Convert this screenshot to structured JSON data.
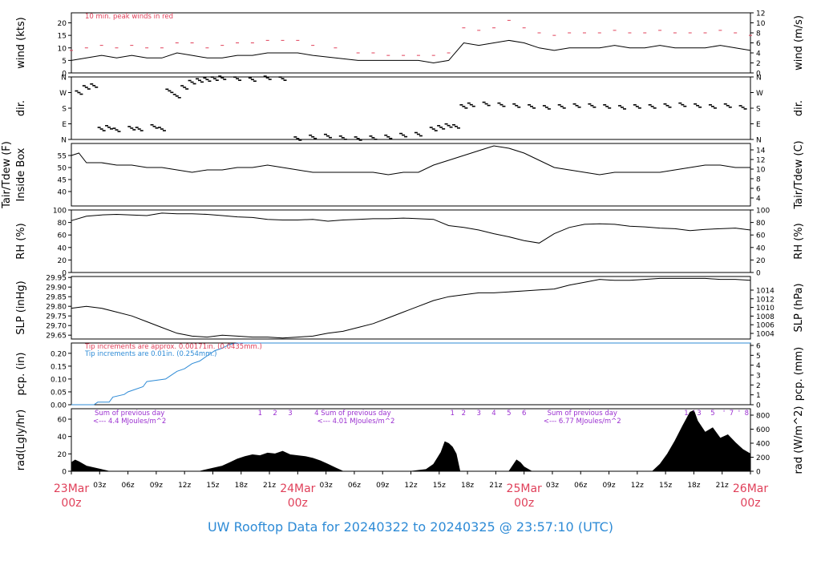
{
  "title": "UW Rooftop Data for 20240322  to  20240325 @ 23:57:10  (UTC)",
  "colors": {
    "day": "#e0405a",
    "tip": "#2e8bd6",
    "note": "#9b30d0",
    "series": "#000000",
    "peak": "#e0405a"
  },
  "chart_data": [
    {
      "type": "line",
      "panel": "wind",
      "ylabel": "wind (kts)",
      "ylabel_right": "wind (m/s)",
      "ylim": [
        0,
        24
      ],
      "yticks": [
        0,
        5,
        10,
        15,
        20
      ],
      "yticks_right": [
        0,
        2,
        4,
        6,
        8,
        10,
        12
      ],
      "annotation": "10 min. peak winds in red",
      "series": [
        {
          "color": "#000000",
          "x": [
            0,
            2,
            4,
            6,
            8,
            10,
            12,
            14,
            16,
            18,
            20,
            22,
            24,
            26,
            28,
            30,
            32,
            35,
            38,
            40,
            42,
            44,
            46,
            48,
            50,
            52,
            54,
            56,
            58,
            60,
            62,
            64,
            66,
            68,
            70,
            72,
            74,
            76,
            78,
            80,
            82,
            84,
            86,
            88,
            90
          ],
          "y": [
            5,
            6,
            7,
            6,
            7,
            6,
            6,
            8,
            7,
            6,
            6,
            7,
            7,
            8,
            8,
            8,
            7,
            6,
            5,
            5,
            5,
            5,
            5,
            4,
            5,
            12,
            11,
            12,
            13,
            12,
            10,
            9,
            10,
            10,
            10,
            11,
            10,
            10,
            11,
            10,
            10,
            10,
            11,
            10,
            9
          ]
        },
        {
          "color": "#e0405a",
          "x": [
            0,
            2,
            4,
            6,
            8,
            10,
            12,
            14,
            16,
            18,
            20,
            22,
            24,
            26,
            28,
            30,
            32,
            35,
            38,
            40,
            42,
            44,
            46,
            48,
            50,
            52,
            54,
            56,
            58,
            60,
            62,
            64,
            66,
            68,
            70,
            72,
            74,
            76,
            78,
            80,
            82,
            84,
            86,
            88,
            90
          ],
          "y": [
            9,
            10,
            11,
            10,
            11,
            10,
            10,
            12,
            12,
            10,
            11,
            12,
            12,
            13,
            13,
            13,
            11,
            10,
            8,
            8,
            7,
            7,
            7,
            7,
            8,
            18,
            17,
            18,
            21,
            18,
            16,
            15,
            16,
            16,
            16,
            17,
            16,
            16,
            17,
            16,
            16,
            16,
            17,
            16,
            15
          ]
        }
      ]
    },
    {
      "type": "scatter",
      "panel": "dir",
      "ylabel": "dir.",
      "ylabel_right": "dir.",
      "yticks": [
        "N",
        "E",
        "S",
        "W",
        "N"
      ],
      "yrange_deg": [
        0,
        360
      ],
      "points": [
        [
          1,
          270
        ],
        [
          2,
          300
        ],
        [
          3,
          310
        ],
        [
          4,
          60
        ],
        [
          5,
          70
        ],
        [
          6,
          55
        ],
        [
          8,
          65
        ],
        [
          9,
          60
        ],
        [
          11,
          75
        ],
        [
          12,
          60
        ],
        [
          13,
          280
        ],
        [
          14,
          250
        ],
        [
          15,
          300
        ],
        [
          16,
          330
        ],
        [
          17,
          340
        ],
        [
          18,
          345
        ],
        [
          19,
          350
        ],
        [
          20,
          355
        ],
        [
          22,
          350
        ],
        [
          24,
          345
        ],
        [
          26,
          355
        ],
        [
          28,
          350
        ],
        [
          30,
          5
        ],
        [
          32,
          15
        ],
        [
          34,
          20
        ],
        [
          36,
          10
        ],
        [
          38,
          5
        ],
        [
          40,
          10
        ],
        [
          42,
          15
        ],
        [
          44,
          25
        ],
        [
          46,
          30
        ],
        [
          48,
          60
        ],
        [
          49,
          70
        ],
        [
          50,
          80
        ],
        [
          51,
          75
        ],
        [
          52,
          190
        ],
        [
          53,
          200
        ],
        [
          55,
          205
        ],
        [
          57,
          200
        ],
        [
          59,
          195
        ],
        [
          61,
          190
        ],
        [
          63,
          185
        ],
        [
          65,
          190
        ],
        [
          67,
          195
        ],
        [
          69,
          195
        ],
        [
          71,
          190
        ],
        [
          73,
          185
        ],
        [
          75,
          190
        ],
        [
          77,
          190
        ],
        [
          79,
          195
        ],
        [
          81,
          200
        ],
        [
          83,
          195
        ],
        [
          85,
          190
        ],
        [
          87,
          195
        ],
        [
          89,
          185
        ]
      ]
    },
    {
      "type": "line",
      "panel": "temp",
      "ylabel": "Tair/Tdew (F)",
      "ylabel_sub": "Inside Box",
      "ylabel_right": "Tair/Tdew (C)",
      "ylim": [
        34,
        60
      ],
      "yticks": [
        40,
        45,
        50,
        55
      ],
      "yticks_right": [
        4,
        6,
        8,
        10,
        12,
        14
      ],
      "x": [
        0,
        1,
        2,
        4,
        6,
        8,
        10,
        12,
        14,
        16,
        18,
        20,
        22,
        24,
        26,
        28,
        30,
        32,
        34,
        36,
        38,
        40,
        42,
        44,
        46,
        48,
        50,
        52,
        54,
        56,
        58,
        60,
        62,
        64,
        66,
        68,
        70,
        72,
        74,
        76,
        78,
        80,
        82,
        84,
        86,
        88,
        90
      ],
      "y": [
        55,
        56,
        52,
        52,
        51,
        51,
        50,
        50,
        49,
        48,
        49,
        49,
        50,
        50,
        51,
        50,
        49,
        48,
        48,
        48,
        48,
        48,
        47,
        48,
        48,
        51,
        53,
        55,
        57,
        59,
        58,
        56,
        53,
        50,
        49,
        48,
        47,
        48,
        48,
        48,
        48,
        49,
        50,
        51,
        51,
        50,
        50
      ]
    },
    {
      "type": "line",
      "panel": "rh",
      "ylabel": "RH (%)",
      "ylabel_right": "RH (%)",
      "ylim": [
        0,
        100
      ],
      "yticks": [
        0,
        20,
        40,
        60,
        80,
        100
      ],
      "yticks_right": [
        0,
        20,
        40,
        60,
        80,
        100
      ],
      "x": [
        0,
        2,
        4,
        6,
        8,
        10,
        12,
        14,
        16,
        18,
        20,
        22,
        24,
        26,
        28,
        30,
        32,
        34,
        36,
        38,
        40,
        42,
        44,
        46,
        48,
        50,
        52,
        54,
        56,
        58,
        60,
        62,
        64,
        66,
        68,
        70,
        72,
        74,
        76,
        78,
        80,
        82,
        84,
        86,
        88,
        90
      ],
      "y": [
        83,
        90,
        92,
        93,
        92,
        91,
        95,
        94,
        94,
        93,
        91,
        89,
        88,
        85,
        84,
        84,
        85,
        82,
        84,
        85,
        86,
        86,
        87,
        86,
        85,
        75,
        72,
        68,
        62,
        57,
        51,
        47,
        62,
        72,
        77,
        78,
        77,
        74,
        73,
        71,
        70,
        67,
        69,
        70,
        71,
        68
      ]
    },
    {
      "type": "line",
      "panel": "slp",
      "ylabel": "SLP (inHg)",
      "ylabel_right": "SLP (hPa)",
      "ylim": [
        29.63,
        29.955
      ],
      "yticks": [
        29.65,
        29.7,
        29.75,
        29.8,
        29.85,
        29.9,
        29.95
      ],
      "yticks_right": [
        1004,
        1006,
        1008,
        1010,
        1012,
        1014
      ],
      "x": [
        0,
        2,
        4,
        6,
        8,
        10,
        12,
        14,
        16,
        18,
        20,
        22,
        24,
        26,
        28,
        30,
        32,
        34,
        36,
        38,
        40,
        42,
        44,
        46,
        48,
        50,
        52,
        54,
        56,
        58,
        60,
        62,
        64,
        66,
        68,
        70,
        72,
        74,
        76,
        78,
        80,
        82,
        84,
        86,
        88,
        90
      ],
      "y": [
        29.79,
        29.8,
        29.79,
        29.77,
        29.75,
        29.72,
        29.69,
        29.66,
        29.645,
        29.64,
        29.65,
        29.645,
        29.64,
        29.64,
        29.635,
        29.64,
        29.645,
        29.66,
        29.67,
        29.69,
        29.71,
        29.74,
        29.77,
        29.8,
        29.83,
        29.85,
        29.86,
        29.87,
        29.87,
        29.875,
        29.88,
        29.885,
        29.89,
        29.91,
        29.925,
        29.94,
        29.935,
        29.935,
        29.94,
        29.945,
        29.945,
        29.945,
        29.945,
        29.94,
        29.94,
        29.935
      ]
    },
    {
      "type": "line",
      "panel": "pcp",
      "ylabel": "pcp. (in)",
      "ylabel_right": "pcp. (mm)",
      "ylim": [
        0,
        0.24
      ],
      "yticks": [
        0.0,
        0.05,
        0.1,
        0.15,
        0.2
      ],
      "yticks_right": [
        0,
        1,
        2,
        3,
        4,
        5,
        6
      ],
      "notes": [
        "Tip increments are approx. 0.00171in. (0.0435mm.)",
        "Tip increments are 0.01in. (0.254mm.)"
      ],
      "series": [
        {
          "color": "#2e8bd6",
          "x": [
            0,
            3,
            3.5,
            5,
            5.5,
            7,
            7.5,
            9.5,
            10,
            12.5,
            13,
            14,
            15,
            16,
            17,
            18,
            19,
            20,
            21,
            22,
            22.5,
            23,
            24,
            90
          ],
          "y": [
            0,
            0,
            0.01,
            0.01,
            0.03,
            0.04,
            0.05,
            0.07,
            0.09,
            0.1,
            0.11,
            0.13,
            0.14,
            0.16,
            0.17,
            0.19,
            0.21,
            0.22,
            0.235,
            0.24,
            0.24,
            0.24,
            0.24,
            0.24
          ]
        }
      ]
    },
    {
      "type": "area",
      "panel": "rad",
      "ylabel": "rad(Lgly/hr)",
      "ylabel_right": "rad (W/m^2)",
      "ylim": [
        0,
        72
      ],
      "yticks": [
        0,
        20,
        40,
        60
      ],
      "yticks_right": [
        0,
        200,
        400,
        600,
        800
      ],
      "day_notes": [
        {
          "line1": "Sum of previous day",
          "line2": "<--- 4.4 MJoules/m^2",
          "x": 4
        },
        {
          "line1": "Sum of previous day",
          "line2": "<--- 4.01 MJoules/m^2",
          "x": 34
        },
        {
          "line1": "Sum of previous day",
          "line2": "<--- 6.77 MJoules/m^2",
          "x": 64
        }
      ],
      "markers": [
        {
          "label": "1",
          "x": 25
        },
        {
          "label": "2",
          "x": 27
        },
        {
          "label": "3",
          "x": 29
        },
        {
          "label": "4",
          "x": 32.5
        },
        {
          "label": "1",
          "x": 50.5
        },
        {
          "label": "2",
          "x": 52
        },
        {
          "label": "3",
          "x": 54
        },
        {
          "label": "4",
          "x": 56
        },
        {
          "label": "5",
          "x": 58
        },
        {
          "label": "6",
          "x": 60
        },
        {
          "label": "1",
          "x": 81.5
        },
        {
          "label": "'",
          "x": 82.5
        },
        {
          "label": "3",
          "x": 83.2
        },
        {
          "label": "5",
          "x": 85
        },
        {
          "label": "'",
          "x": 86.5
        },
        {
          "label": "7",
          "x": 87.5
        },
        {
          "label": "'",
          "x": 88.5
        },
        {
          "label": "8",
          "x": 89.5
        }
      ],
      "x": [
        0,
        0.5,
        1,
        2,
        3,
        4,
        4.5,
        5,
        17,
        18,
        19,
        20,
        21,
        22,
        23,
        24,
        25,
        26,
        27,
        28,
        29,
        30,
        31,
        32,
        33,
        34,
        35,
        36,
        37,
        38,
        45,
        47,
        48,
        48.5,
        49,
        49.5,
        50,
        50.5,
        51,
        51.5,
        58,
        59,
        59.5,
        60,
        61,
        77,
        78,
        79,
        80,
        81,
        82,
        82.5,
        83,
        84,
        85,
        86,
        87,
        88,
        89,
        90
      ],
      "y": [
        10,
        13,
        11,
        6,
        4,
        2,
        1,
        0,
        0,
        2,
        4,
        6,
        10,
        14,
        17,
        19,
        18,
        21,
        20,
        23,
        19,
        18,
        17,
        15,
        12,
        8,
        4,
        0,
        0,
        0,
        0,
        2,
        8,
        15,
        22,
        34,
        32,
        28,
        20,
        0,
        0,
        13,
        10,
        5,
        0,
        0,
        8,
        20,
        35,
        52,
        68,
        70,
        58,
        45,
        50,
        38,
        42,
        33,
        25,
        20
      ]
    }
  ],
  "xaxis": {
    "ticks": [
      {
        "x": 0,
        "label": "23Mar",
        "sub": "00z",
        "major": true
      },
      {
        "x": 3,
        "label": "03z"
      },
      {
        "x": 6,
        "label": "06z"
      },
      {
        "x": 9,
        "label": "09z"
      },
      {
        "x": 12,
        "label": "12z"
      },
      {
        "x": 15,
        "label": "15z"
      },
      {
        "x": 18,
        "label": "18z"
      },
      {
        "x": 21,
        "label": "21z"
      },
      {
        "x": 24,
        "label": "24Mar",
        "sub": "00z",
        "major": true
      },
      {
        "x": 27,
        "label": "03z"
      },
      {
        "x": 30,
        "label": "06z"
      },
      {
        "x": 33,
        "label": "09z"
      },
      {
        "x": 36,
        "label": "12z"
      },
      {
        "x": 39,
        "label": "15z"
      },
      {
        "x": 42,
        "label": "18z"
      },
      {
        "x": 45,
        "label": "21z"
      },
      {
        "x": 48,
        "label": "25Mar",
        "sub": "00z",
        "major": true
      },
      {
        "x": 51,
        "label": "03z"
      },
      {
        "x": 54,
        "label": "06z"
      },
      {
        "x": 57,
        "label": "09z"
      },
      {
        "x": 60,
        "label": "12z"
      },
      {
        "x": 63,
        "label": "15z"
      },
      {
        "x": 66,
        "label": "18z"
      },
      {
        "x": 69,
        "label": "21z"
      },
      {
        "x": 72,
        "label": "26Mar",
        "sub": "00z",
        "major": true
      }
    ]
  }
}
